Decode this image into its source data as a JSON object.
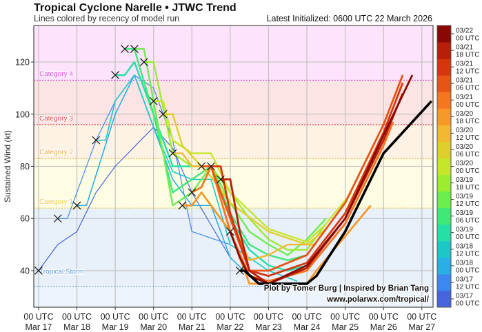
{
  "title": "Tropical Cyclone Narelle • JTWC Trend",
  "subtitle": "Lines colored by recency of model run",
  "latest_initialized": "Latest Initialized: 0600 UTC 22 March 2026",
  "credit_line1": "Plot by Tomer Burg | Inspired by Brian Tang",
  "credit_line2": "www.polarwx.com/tropical/",
  "chart_data": {
    "type": "line",
    "ylabel": "Sustained Wind (kt)",
    "ylim": [
      26,
      134
    ],
    "xlim": [
      "03/16 21",
      "03/27 07"
    ],
    "grid": true,
    "yticks": [
      40,
      60,
      80,
      100,
      120
    ],
    "xticks": [
      {
        "t": "03/17 00",
        "l1": "00 UTC",
        "l2": "Mar 17"
      },
      {
        "t": "03/18 00",
        "l1": "00 UTC",
        "l2": "Mar 18"
      },
      {
        "t": "03/19 00",
        "l1": "00 UTC",
        "l2": "Mar 19"
      },
      {
        "t": "03/20 00",
        "l1": "00 UTC",
        "l2": "Mar 20"
      },
      {
        "t": "03/21 00",
        "l1": "00 UTC",
        "l2": "Mar 21"
      },
      {
        "t": "03/22 00",
        "l1": "00 UTC",
        "l2": "Mar 22"
      },
      {
        "t": "03/23 00",
        "l1": "00 UTC",
        "l2": "Mar 23"
      },
      {
        "t": "03/24 00",
        "l1": "00 UTC",
        "l2": "Mar 24"
      },
      {
        "t": "03/25 00",
        "l1": "00 UTC",
        "l2": "Mar 25"
      },
      {
        "t": "03/26 00",
        "l1": "00 UTC",
        "l2": "Mar 26"
      },
      {
        "t": "03/27 00",
        "l1": "00 UTC",
        "l2": "Mar 27"
      }
    ],
    "categories": [
      {
        "name": "Tropical Storm",
        "kt": 34,
        "color": "#5a9ae0",
        "band": "#e8f0f9"
      },
      {
        "name": "Category 1",
        "kt": 64,
        "color": "#f2c84a",
        "band": "#fefde3"
      },
      {
        "name": "Category 2",
        "kt": 83,
        "color": "#f4a640",
        "band": "#fdf2e4"
      },
      {
        "name": "Category 3",
        "kt": 96,
        "color": "#e84040",
        "band": "#fbe4e3"
      },
      {
        "name": "Category 4",
        "kt": 113,
        "color": "#e040e0",
        "band": "#fde3fb"
      }
    ],
    "below_ts_band": "#eef4fb",
    "colorbar": [
      {
        "run": "03/17 00",
        "l1": "03/17",
        "l2": "00 UTC",
        "color": "#4664dc"
      },
      {
        "run": "03/17 12",
        "l1": "03/17",
        "l2": "12 UTC",
        "color": "#3a88f0"
      },
      {
        "run": "03/18 00",
        "l1": "03/18",
        "l2": "00 UTC",
        "color": "#2aaee6"
      },
      {
        "run": "03/18 12",
        "l1": "03/18",
        "l2": "12 UTC",
        "color": "#1cc8c6"
      },
      {
        "run": "03/19 00",
        "l1": "03/19",
        "l2": "00 UTC",
        "color": "#22e0a6"
      },
      {
        "run": "03/19 06",
        "l1": "03/19",
        "l2": "06 UTC",
        "color": "#40e878"
      },
      {
        "run": "03/19 12",
        "l1": "03/19",
        "l2": "12 UTC",
        "color": "#6cee4e"
      },
      {
        "run": "03/19 18",
        "l1": "03/19",
        "l2": "18 UTC",
        "color": "#9cec30"
      },
      {
        "run": "03/20 00",
        "l1": "03/20",
        "l2": "00 UTC",
        "color": "#c6e62a"
      },
      {
        "run": "03/20 06",
        "l1": "03/20",
        "l2": "06 UTC",
        "color": "#ded02a"
      },
      {
        "run": "03/20 12",
        "l1": "03/20",
        "l2": "12 UTC",
        "color": "#f2b832"
      },
      {
        "run": "03/20 18",
        "l1": "03/20",
        "l2": "18 UTC",
        "color": "#f89828"
      },
      {
        "run": "03/21 00",
        "l1": "03/21",
        "l2": "00 UTC",
        "color": "#f47620"
      },
      {
        "run": "03/21 06",
        "l1": "03/21",
        "l2": "06 UTC",
        "color": "#e65416"
      },
      {
        "run": "03/21 12",
        "l1": "03/21",
        "l2": "12 UTC",
        "color": "#d6360e"
      },
      {
        "run": "03/21 18",
        "l1": "03/21",
        "l2": "18 UTC",
        "color": "#b81e08"
      },
      {
        "run": "03/22 00",
        "l1": "03/22",
        "l2": "00 UTC",
        "color": "#8a0804"
      }
    ],
    "series": [
      {
        "run": "03/17 00",
        "points": [
          [
            "03/17 00",
            40
          ],
          [
            "03/17 12",
            50
          ],
          [
            "03/18 00",
            55
          ],
          [
            "03/18 12",
            70
          ],
          [
            "03/19 00",
            80
          ],
          [
            "03/20 00",
            95
          ],
          [
            "03/20 12",
            87
          ],
          [
            "03/21 00",
            70
          ],
          [
            "03/22 00",
            45
          ]
        ]
      },
      {
        "run": "03/17 12",
        "points": [
          [
            "03/17 12",
            60
          ],
          [
            "03/17 18",
            60
          ],
          [
            "03/18 12",
            90
          ],
          [
            "03/19 00",
            105
          ],
          [
            "03/19 12",
            115
          ],
          [
            "03/20 00",
            110
          ],
          [
            "03/20 12",
            90
          ],
          [
            "03/21 00",
            55
          ],
          [
            "03/22 00",
            50
          ]
        ]
      },
      {
        "run": "03/18 00",
        "points": [
          [
            "03/18 00",
            65
          ],
          [
            "03/18 06",
            65
          ],
          [
            "03/19 00",
            100
          ],
          [
            "03/19 12",
            115
          ],
          [
            "03/20 12",
            75
          ],
          [
            "03/21 00",
            65
          ],
          [
            "03/21 12",
            65
          ],
          [
            "03/22 00",
            45
          ],
          [
            "03/22 12",
            38
          ],
          [
            "03/23 00",
            36
          ]
        ]
      },
      {
        "run": "03/18 12",
        "points": [
          [
            "03/18 12",
            90
          ],
          [
            "03/18 18",
            90
          ],
          [
            "03/19 00",
            105
          ],
          [
            "03/19 12",
            115
          ],
          [
            "03/20 00",
            95
          ],
          [
            "03/20 12",
            78
          ],
          [
            "03/21 00",
            75
          ],
          [
            "03/21 12",
            75
          ],
          [
            "03/22 00",
            50
          ],
          [
            "03/23 00",
            40
          ],
          [
            "03/23 18",
            36
          ]
        ]
      },
      {
        "run": "03/19 00",
        "points": [
          [
            "03/19 00",
            115
          ],
          [
            "03/19 06",
            115
          ],
          [
            "03/19 12",
            120
          ],
          [
            "03/20 00",
            100
          ],
          [
            "03/20 12",
            80
          ],
          [
            "03/21 00",
            80
          ],
          [
            "03/21 12",
            80
          ],
          [
            "03/22 00",
            60
          ],
          [
            "03/22 12",
            48
          ],
          [
            "03/23 00",
            42
          ],
          [
            "03/23 12",
            40
          ],
          [
            "03/24 00",
            42
          ]
        ]
      },
      {
        "run": "03/19 06",
        "points": [
          [
            "03/19 06",
            125
          ],
          [
            "03/19 12",
            125
          ],
          [
            "03/20 00",
            100
          ],
          [
            "03/20 12",
            70
          ],
          [
            "03/21 00",
            75
          ],
          [
            "03/21 12",
            80
          ],
          [
            "03/22 00",
            62
          ],
          [
            "03/22 12",
            50
          ],
          [
            "03/23 00",
            46
          ],
          [
            "03/23 12",
            44
          ],
          [
            "03/24 00",
            46
          ]
        ]
      },
      {
        "run": "03/19 12",
        "points": [
          [
            "03/19 12",
            125
          ],
          [
            "03/19 18",
            125
          ],
          [
            "03/20 12",
            65
          ],
          [
            "03/21 00",
            70
          ],
          [
            "03/21 12",
            80
          ],
          [
            "03/22 00",
            66
          ],
          [
            "03/22 12",
            55
          ],
          [
            "03/23 00",
            50
          ],
          [
            "03/23 12",
            46
          ],
          [
            "03/24 00",
            52
          ],
          [
            "03/24 12",
            60
          ]
        ]
      },
      {
        "run": "03/19 18",
        "points": [
          [
            "03/19 18",
            120
          ],
          [
            "03/20 00",
            120
          ],
          [
            "03/20 12",
            85
          ],
          [
            "03/21 00",
            80
          ],
          [
            "03/21 12",
            80
          ],
          [
            "03/22 00",
            70
          ],
          [
            "03/22 12",
            60
          ],
          [
            "03/23 00",
            52
          ],
          [
            "03/23 12",
            48
          ],
          [
            "03/24 00",
            48
          ],
          [
            "03/24 12",
            58
          ]
        ]
      },
      {
        "run": "03/20 00",
        "points": [
          [
            "03/20 00",
            105
          ],
          [
            "03/20 06",
            105
          ],
          [
            "03/20 12",
            90
          ],
          [
            "03/21 00",
            85
          ],
          [
            "03/21 12",
            85
          ],
          [
            "03/22 00",
            70
          ],
          [
            "03/23 00",
            56
          ],
          [
            "03/24 00",
            51
          ],
          [
            "03/24 12",
            58
          ],
          [
            "03/25 04",
            70
          ]
        ]
      },
      {
        "run": "03/20 06",
        "points": [
          [
            "03/20 06",
            100
          ],
          [
            "03/20 12",
            100
          ],
          [
            "03/20 18",
            88
          ],
          [
            "03/21 00",
            84
          ],
          [
            "03/21 12",
            76
          ],
          [
            "03/22 00",
            66
          ],
          [
            "03/23 00",
            55
          ],
          [
            "03/24 00",
            50
          ],
          [
            "03/24 12",
            56
          ]
        ]
      },
      {
        "run": "03/20 12",
        "points": [
          [
            "03/20 12",
            85
          ],
          [
            "03/20 18",
            85
          ],
          [
            "03/21 00",
            80
          ],
          [
            "03/21 12",
            80
          ],
          [
            "03/22 00",
            60
          ],
          [
            "03/22 12",
            44
          ],
          [
            "03/23 00",
            46
          ],
          [
            "03/23 12",
            50
          ],
          [
            "03/24 00",
            50
          ],
          [
            "03/24 06",
            50
          ]
        ]
      },
      {
        "run": "03/20 18",
        "points": [
          [
            "03/20 18",
            65
          ],
          [
            "03/21 00",
            65
          ],
          [
            "03/21 06",
            70
          ],
          [
            "03/22 00",
            55
          ],
          [
            "03/22 12",
            35
          ],
          [
            "03/23 00",
            35
          ],
          [
            "03/24 00",
            35
          ],
          [
            "03/24 06",
            40
          ],
          [
            "03/25 16",
            65
          ]
        ]
      },
      {
        "run": "03/21 00",
        "points": [
          [
            "03/21 00",
            70
          ],
          [
            "03/21 06",
            72
          ],
          [
            "03/21 12",
            80
          ],
          [
            "03/22 00",
            55
          ],
          [
            "03/22 12",
            38
          ],
          [
            "03/23 00",
            36
          ],
          [
            "03/24 00",
            40
          ],
          [
            "03/25 00",
            58
          ],
          [
            "03/26 00",
            88
          ],
          [
            "03/26 06",
            97
          ]
        ]
      },
      {
        "run": "03/21 06",
        "points": [
          [
            "03/21 06",
            80
          ],
          [
            "03/21 12",
            80
          ],
          [
            "03/22 00",
            60
          ],
          [
            "03/22 12",
            40
          ],
          [
            "03/23 00",
            40
          ],
          [
            "03/24 00",
            46
          ],
          [
            "03/25 00",
            66
          ],
          [
            "03/26 00",
            96
          ],
          [
            "03/26 12",
            115
          ]
        ]
      },
      {
        "run": "03/21 12",
        "points": [
          [
            "03/21 12",
            80
          ],
          [
            "03/21 18",
            80
          ],
          [
            "03/22 00",
            62
          ],
          [
            "03/22 12",
            40
          ],
          [
            "03/23 00",
            38
          ],
          [
            "03/24 00",
            43
          ],
          [
            "03/25 00",
            62
          ],
          [
            "03/26 00",
            93
          ],
          [
            "03/26 12",
            112
          ]
        ]
      },
      {
        "run": "03/21 18",
        "points": [
          [
            "03/21 18",
            75
          ],
          [
            "03/22 00",
            75
          ],
          [
            "03/22 06",
            55
          ],
          [
            "03/22 12",
            40
          ],
          [
            "03/23 00",
            35
          ],
          [
            "03/24 00",
            41
          ],
          [
            "03/25 00",
            60
          ],
          [
            "03/26 00",
            90
          ],
          [
            "03/26 12",
            108
          ]
        ]
      },
      {
        "run": "03/22 00",
        "points": [
          [
            "03/22 00",
            55
          ],
          [
            "03/22 06",
            45
          ],
          [
            "03/22 12",
            38
          ],
          [
            "03/23 00",
            35
          ],
          [
            "03/24 00",
            42
          ],
          [
            "03/25 00",
            60
          ],
          [
            "03/26 00",
            92
          ],
          [
            "03/26 18",
            115
          ]
        ]
      },
      {
        "run": "03/22 06",
        "latest": true,
        "points": [
          [
            "03/22 06",
            40
          ],
          [
            "03/22 09",
            40
          ],
          [
            "03/22 18",
            35
          ],
          [
            "03/23 12",
            35
          ],
          [
            "03/24 00",
            35
          ],
          [
            "03/24 06",
            38
          ],
          [
            "03/25 00",
            55
          ],
          [
            "03/26 00",
            85
          ],
          [
            "03/27 06",
            105
          ]
        ]
      }
    ]
  }
}
